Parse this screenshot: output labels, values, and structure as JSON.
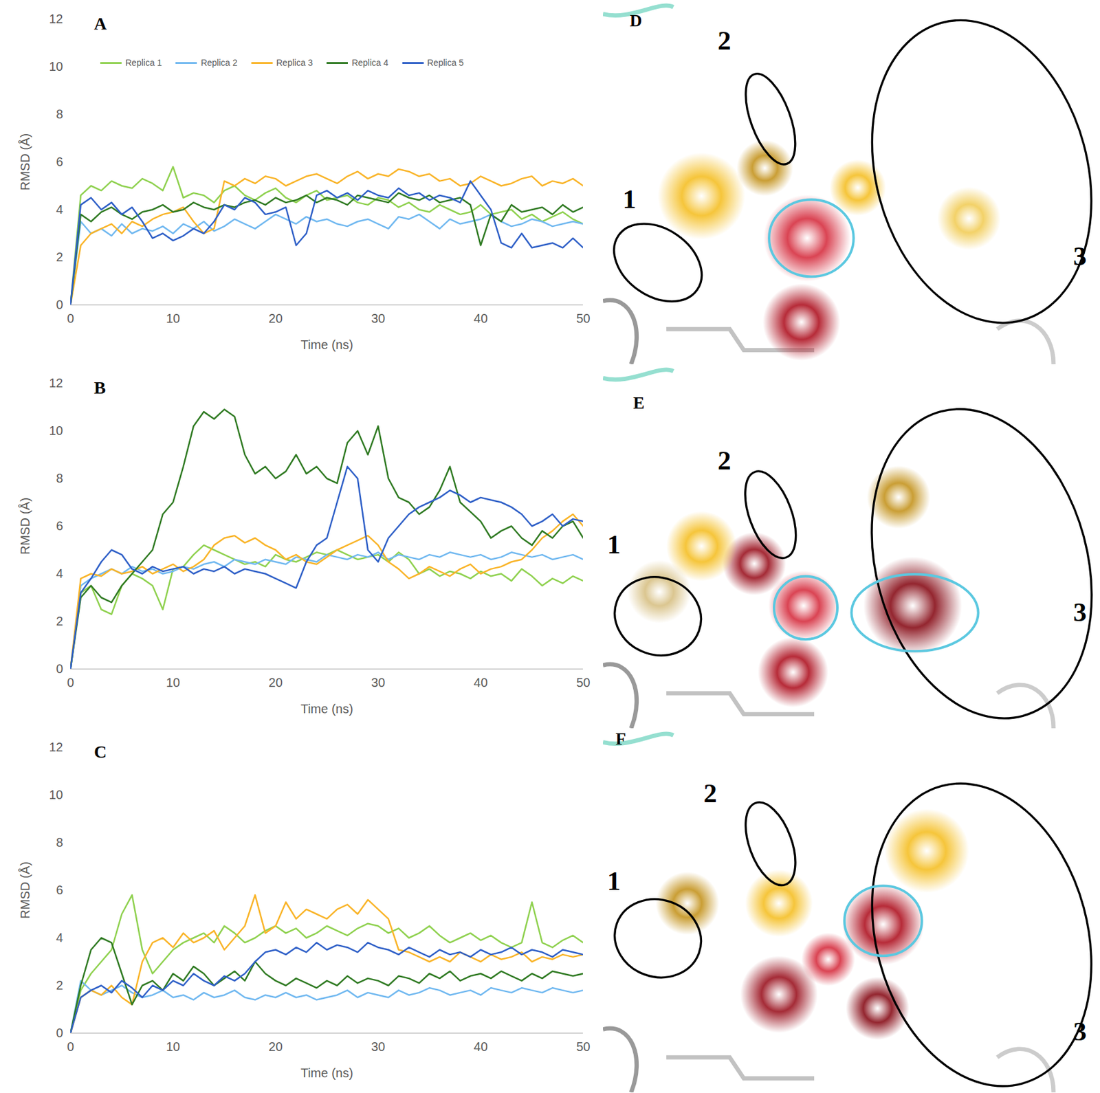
{
  "chart_data": [
    {
      "type": "line",
      "title": "A",
      "x_label": "Time (ns)",
      "y_label": "RMSD (Å)",
      "xlim": [
        0,
        50
      ],
      "xticks": [
        0,
        10,
        20,
        30,
        40,
        50
      ],
      "ylim": [
        0,
        12
      ],
      "yticks": [
        0,
        2,
        4,
        6,
        8,
        10,
        12
      ],
      "grid": false,
      "legend": "top",
      "x": [
        0,
        1,
        2,
        3,
        4,
        5,
        6,
        7,
        8,
        9,
        10,
        11,
        12,
        13,
        14,
        15,
        16,
        17,
        18,
        19,
        20,
        21,
        22,
        23,
        24,
        25,
        26,
        27,
        28,
        29,
        30,
        31,
        32,
        33,
        34,
        35,
        36,
        37,
        38,
        39,
        40,
        41,
        42,
        43,
        44,
        45,
        46,
        47,
        48,
        49,
        50
      ],
      "series": [
        {
          "name": "Replica 1",
          "color": "#8fd14f",
          "values": [
            0,
            4.6,
            5.0,
            4.8,
            5.2,
            5.0,
            4.9,
            5.3,
            5.1,
            4.8,
            5.8,
            4.5,
            4.7,
            4.6,
            4.3,
            4.8,
            5.0,
            4.6,
            4.4,
            4.7,
            4.9,
            4.5,
            4.3,
            4.6,
            4.8,
            4.4,
            4.5,
            4.6,
            4.3,
            4.2,
            4.5,
            4.4,
            4.1,
            4.3,
            4.0,
            3.9,
            4.2,
            4.0,
            3.8,
            3.9,
            4.2,
            3.8,
            3.9,
            4.0,
            3.6,
            3.8,
            3.5,
            3.7,
            3.9,
            3.6,
            3.4
          ]
        },
        {
          "name": "Replica 2",
          "color": "#70b8f0",
          "values": [
            0,
            3.5,
            3.0,
            3.2,
            2.9,
            3.4,
            3.0,
            3.2,
            3.1,
            3.3,
            3.0,
            3.4,
            3.2,
            3.5,
            3.1,
            3.3,
            3.6,
            3.4,
            3.2,
            3.5,
            3.8,
            3.6,
            3.4,
            3.7,
            3.5,
            3.6,
            3.4,
            3.3,
            3.5,
            3.6,
            3.4,
            3.2,
            3.7,
            3.6,
            3.8,
            3.5,
            3.2,
            3.6,
            3.4,
            3.5,
            3.6,
            3.8,
            3.5,
            3.3,
            3.4,
            3.6,
            3.5,
            3.3,
            3.4,
            3.5,
            3.4
          ]
        },
        {
          "name": "Replica 3",
          "color": "#f9b428",
          "values": [
            0,
            2.5,
            3.0,
            3.2,
            3.4,
            3.0,
            3.5,
            3.3,
            3.6,
            3.8,
            3.9,
            4.1,
            3.5,
            3.0,
            3.2,
            5.2,
            5.0,
            5.3,
            5.1,
            5.4,
            5.3,
            5.0,
            5.2,
            5.4,
            5.5,
            5.3,
            5.1,
            5.4,
            5.6,
            5.3,
            5.5,
            5.4,
            5.7,
            5.6,
            5.4,
            5.5,
            5.2,
            5.3,
            5.0,
            5.1,
            5.4,
            5.2,
            5.0,
            5.1,
            5.3,
            5.4,
            5.0,
            5.2,
            5.1,
            5.3,
            5.0
          ]
        },
        {
          "name": "Replica 4",
          "color": "#2f7a22",
          "values": [
            0,
            3.8,
            3.5,
            3.9,
            4.1,
            3.8,
            3.6,
            3.9,
            4.0,
            4.2,
            3.9,
            4.0,
            4.3,
            4.1,
            4.0,
            4.2,
            4.1,
            4.3,
            4.4,
            4.2,
            4.5,
            4.3,
            4.4,
            4.6,
            4.3,
            4.5,
            4.4,
            4.2,
            4.6,
            4.5,
            4.4,
            4.3,
            4.7,
            4.5,
            4.4,
            4.6,
            4.3,
            4.4,
            4.5,
            4.2,
            2.5,
            3.8,
            3.5,
            4.2,
            3.9,
            4.0,
            4.1,
            3.8,
            4.2,
            3.9,
            4.1
          ]
        },
        {
          "name": "Replica 5",
          "color": "#2e5fc7",
          "values": [
            0,
            4.2,
            4.5,
            4.0,
            4.3,
            3.8,
            4.1,
            3.5,
            2.8,
            3.0,
            2.7,
            2.9,
            3.2,
            3.0,
            3.5,
            4.2,
            4.0,
            4.5,
            4.3,
            3.8,
            3.9,
            4.1,
            2.5,
            3.0,
            4.6,
            4.8,
            4.5,
            4.7,
            4.4,
            4.8,
            4.6,
            4.5,
            4.9,
            4.6,
            4.7,
            4.4,
            4.6,
            4.5,
            4.3,
            5.2,
            4.6,
            4.0,
            2.6,
            2.4,
            3.0,
            2.4,
            2.5,
            2.6,
            2.4,
            2.8,
            2.4
          ]
        }
      ]
    },
    {
      "type": "line",
      "title": "B",
      "x_label": "Time (ns)",
      "y_label": "RMSD (Å)",
      "xlim": [
        0,
        50
      ],
      "xticks": [
        0,
        10,
        20,
        30,
        40,
        50
      ],
      "ylim": [
        0,
        12
      ],
      "yticks": [
        0,
        2,
        4,
        6,
        8,
        10,
        12
      ],
      "grid": false,
      "x": [
        0,
        1,
        2,
        3,
        4,
        5,
        6,
        7,
        8,
        9,
        10,
        11,
        12,
        13,
        14,
        15,
        16,
        17,
        18,
        19,
        20,
        21,
        22,
        23,
        24,
        25,
        26,
        27,
        28,
        29,
        30,
        31,
        32,
        33,
        34,
        35,
        36,
        37,
        38,
        39,
        40,
        41,
        42,
        43,
        44,
        45,
        46,
        47,
        48,
        49,
        50
      ],
      "series": [
        {
          "name": "Replica 1",
          "color": "#8fd14f",
          "values": [
            0,
            3.2,
            3.5,
            2.5,
            2.3,
            3.5,
            4.0,
            3.8,
            3.5,
            2.5,
            4.2,
            4.3,
            4.8,
            5.2,
            5.0,
            4.8,
            4.6,
            4.4,
            4.5,
            4.3,
            4.8,
            4.6,
            4.5,
            4.7,
            4.9,
            4.8,
            5.0,
            4.8,
            4.6,
            4.7,
            4.8,
            4.5,
            4.9,
            4.6,
            4.0,
            4.2,
            3.9,
            4.1,
            4.0,
            3.8,
            4.1,
            3.9,
            4.0,
            3.7,
            4.2,
            3.9,
            3.5,
            3.8,
            3.6,
            3.9,
            3.7
          ]
        },
        {
          "name": "Replica 2",
          "color": "#70b8f0",
          "values": [
            0,
            3.5,
            3.8,
            4.0,
            4.2,
            4.0,
            4.3,
            4.1,
            4.2,
            4.0,
            4.1,
            4.3,
            4.2,
            4.4,
            4.5,
            4.3,
            4.6,
            4.5,
            4.4,
            4.6,
            4.5,
            4.4,
            4.7,
            4.6,
            4.5,
            4.8,
            4.7,
            4.6,
            4.8,
            4.7,
            4.9,
            4.6,
            4.8,
            4.7,
            4.6,
            4.8,
            4.7,
            4.9,
            4.8,
            4.7,
            4.8,
            4.6,
            4.7,
            4.9,
            4.8,
            4.7,
            4.8,
            4.6,
            4.7,
            4.8,
            4.6
          ]
        },
        {
          "name": "Replica 3",
          "color": "#f9b428",
          "values": [
            0,
            3.8,
            4.0,
            3.9,
            4.2,
            4.0,
            4.1,
            4.3,
            4.0,
            4.2,
            4.4,
            4.1,
            4.3,
            4.6,
            5.2,
            5.5,
            5.6,
            5.3,
            5.5,
            5.2,
            5.0,
            4.6,
            4.8,
            4.5,
            4.4,
            4.7,
            5.0,
            5.2,
            5.4,
            5.6,
            5.2,
            4.5,
            4.2,
            3.8,
            4.0,
            4.3,
            4.1,
            3.9,
            4.2,
            4.4,
            4.0,
            4.2,
            4.3,
            4.5,
            4.6,
            5.0,
            5.5,
            5.8,
            6.2,
            6.5,
            6.0
          ]
        },
        {
          "name": "Replica 4",
          "color": "#2f7a22",
          "values": [
            0,
            3.0,
            3.5,
            3.0,
            2.8,
            3.5,
            4.0,
            4.5,
            5.0,
            6.5,
            7.0,
            8.5,
            10.2,
            10.8,
            10.5,
            10.9,
            10.6,
            9.0,
            8.2,
            8.5,
            8.0,
            8.3,
            9.0,
            8.2,
            8.5,
            8.0,
            7.8,
            9.5,
            10.0,
            9.0,
            10.2,
            8.0,
            7.2,
            7.0,
            6.5,
            6.8,
            7.5,
            8.5,
            7.0,
            6.6,
            6.2,
            5.5,
            5.8,
            6.0,
            5.5,
            5.2,
            5.8,
            5.5,
            6.0,
            6.2,
            5.5
          ]
        },
        {
          "name": "Replica 5",
          "color": "#2e5fc7",
          "values": [
            0,
            3.2,
            3.8,
            4.5,
            5.0,
            4.8,
            4.2,
            4.0,
            4.3,
            4.1,
            4.2,
            4.3,
            4.0,
            4.2,
            4.1,
            4.3,
            4.0,
            4.2,
            4.1,
            4.0,
            3.8,
            3.6,
            3.4,
            4.5,
            5.2,
            5.5,
            7.0,
            8.5,
            8.0,
            5.0,
            4.5,
            5.5,
            6.0,
            6.5,
            6.8,
            7.0,
            7.2,
            7.5,
            7.3,
            7.0,
            7.2,
            7.1,
            7.0,
            6.8,
            6.5,
            6.0,
            6.2,
            6.5,
            6.0,
            6.3,
            6.2
          ]
        }
      ]
    },
    {
      "type": "line",
      "title": "C",
      "x_label": "Time (ns)",
      "y_label": "RMSD (Å)",
      "xlim": [
        0,
        50
      ],
      "xticks": [
        0,
        10,
        20,
        30,
        40,
        50
      ],
      "ylim": [
        0,
        12
      ],
      "yticks": [
        0,
        2,
        4,
        6,
        8,
        10,
        12
      ],
      "grid": false,
      "x": [
        0,
        1,
        2,
        3,
        4,
        5,
        6,
        7,
        8,
        9,
        10,
        11,
        12,
        13,
        14,
        15,
        16,
        17,
        18,
        19,
        20,
        21,
        22,
        23,
        24,
        25,
        26,
        27,
        28,
        29,
        30,
        31,
        32,
        33,
        34,
        35,
        36,
        37,
        38,
        39,
        40,
        41,
        42,
        43,
        44,
        45,
        46,
        47,
        48,
        49,
        50
      ],
      "series": [
        {
          "name": "Replica 1",
          "color": "#8fd14f",
          "values": [
            0,
            1.8,
            2.5,
            3.0,
            3.5,
            5.0,
            5.8,
            3.5,
            2.5,
            3.0,
            3.5,
            3.8,
            4.0,
            4.2,
            3.8,
            4.5,
            4.2,
            3.8,
            4.0,
            4.3,
            4.5,
            4.2,
            4.4,
            4.0,
            4.2,
            4.5,
            4.3,
            4.1,
            4.4,
            4.6,
            4.5,
            4.2,
            4.4,
            4.0,
            4.2,
            4.5,
            4.1,
            3.8,
            4.0,
            4.2,
            3.9,
            4.1,
            3.8,
            3.6,
            3.8,
            5.5,
            3.8,
            3.6,
            3.9,
            4.1,
            3.8
          ]
        },
        {
          "name": "Replica 2",
          "color": "#70b8f0",
          "values": [
            0,
            2.2,
            1.8,
            1.6,
            1.8,
            2.0,
            1.7,
            1.5,
            1.6,
            1.8,
            1.5,
            1.6,
            1.4,
            1.7,
            1.5,
            1.6,
            1.8,
            1.5,
            1.4,
            1.6,
            1.5,
            1.7,
            1.5,
            1.6,
            1.4,
            1.5,
            1.6,
            1.8,
            1.5,
            1.7,
            1.6,
            1.5,
            1.8,
            1.6,
            1.7,
            1.9,
            1.8,
            1.6,
            1.7,
            1.8,
            1.6,
            1.9,
            1.8,
            1.7,
            1.9,
            1.8,
            1.7,
            1.9,
            1.8,
            1.7,
            1.8
          ]
        },
        {
          "name": "Replica 3",
          "color": "#f9b428",
          "values": [
            0,
            1.5,
            1.8,
            1.6,
            2.0,
            1.5,
            1.2,
            3.0,
            3.8,
            4.0,
            3.6,
            4.2,
            3.8,
            4.0,
            4.3,
            3.5,
            4.0,
            4.5,
            5.8,
            4.2,
            4.5,
            5.5,
            4.8,
            5.2,
            5.0,
            4.8,
            5.2,
            5.4,
            5.0,
            5.6,
            5.2,
            4.8,
            3.5,
            3.4,
            3.2,
            3.0,
            3.2,
            3.0,
            3.4,
            3.2,
            3.0,
            3.3,
            3.1,
            3.2,
            3.4,
            3.0,
            3.2,
            3.1,
            3.3,
            3.2,
            3.3
          ]
        },
        {
          "name": "Replica 4",
          "color": "#2f7a22",
          "values": [
            0,
            2.0,
            3.5,
            4.0,
            3.8,
            2.5,
            1.2,
            2.0,
            2.2,
            1.8,
            2.5,
            2.2,
            2.8,
            2.5,
            2.0,
            2.3,
            2.6,
            2.2,
            3.0,
            2.5,
            2.2,
            2.0,
            2.3,
            2.1,
            1.9,
            2.2,
            2.0,
            2.4,
            2.1,
            2.3,
            2.2,
            2.0,
            2.4,
            2.3,
            2.1,
            2.5,
            2.3,
            2.6,
            2.2,
            2.4,
            2.5,
            2.3,
            2.6,
            2.4,
            2.2,
            2.5,
            2.3,
            2.6,
            2.5,
            2.4,
            2.5
          ]
        },
        {
          "name": "Replica 5",
          "color": "#2e5fc7",
          "values": [
            0,
            1.5,
            1.8,
            2.0,
            1.7,
            2.2,
            1.9,
            1.5,
            2.0,
            1.8,
            2.2,
            2.0,
            2.5,
            2.2,
            2.0,
            2.4,
            2.2,
            2.5,
            3.0,
            3.4,
            3.5,
            3.3,
            3.6,
            3.4,
            3.8,
            3.5,
            3.7,
            3.6,
            3.4,
            3.8,
            3.6,
            3.5,
            3.3,
            3.6,
            3.4,
            3.2,
            3.5,
            3.3,
            3.4,
            3.2,
            3.5,
            3.3,
            3.4,
            3.6,
            3.3,
            3.5,
            3.4,
            3.2,
            3.5,
            3.4,
            3.3
          ]
        }
      ]
    }
  ],
  "images": [
    {
      "title": "D",
      "regions": [
        "1",
        "2",
        "3"
      ]
    },
    {
      "title": "E",
      "regions": [
        "1",
        "2",
        "3"
      ]
    },
    {
      "title": "F",
      "regions": [
        "1",
        "2",
        "3"
      ]
    }
  ]
}
